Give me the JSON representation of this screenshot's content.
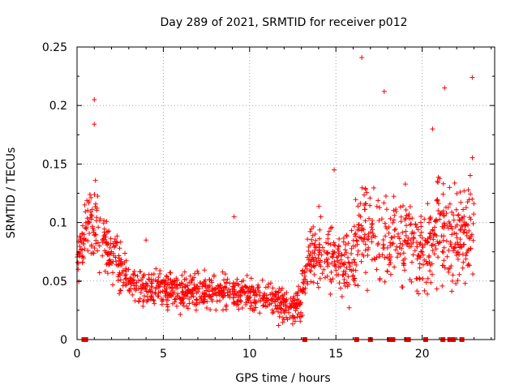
{
  "chart_data": {
    "type": "scatter",
    "title": "Day 289 of 2021, SRMTID for receiver p012",
    "xlabel": "GPS time / hours",
    "ylabel": "SRMTID / TECUs",
    "xlim": [
      0,
      24.2
    ],
    "ylim": [
      0,
      0.25
    ],
    "xticks": [
      0,
      5,
      10,
      15,
      20
    ],
    "yticks": [
      0,
      0.05,
      0.1,
      0.15,
      0.2,
      0.25
    ],
    "xtick_labels": [
      "0",
      "5",
      "10",
      "15",
      "20"
    ],
    "ytick_labels": [
      "0",
      "0.05",
      "0.1",
      "0.15",
      "0.2",
      "0.25"
    ],
    "grid": true,
    "marker": "+",
    "color": "#ff0000",
    "baseline_markers_x": [
      0.4,
      0.5,
      13.2,
      16.2,
      17.0,
      18.1,
      18.3,
      19.1,
      19.2,
      20.2,
      21.2,
      21.6,
      21.8,
      22.3
    ],
    "envelope": {
      "x": [
        0.0,
        0.5,
        0.9,
        1.5,
        2.0,
        2.5,
        3.0,
        3.5,
        4.0,
        5.0,
        6.0,
        7.0,
        8.0,
        9.0,
        10.0,
        11.0,
        12.0,
        12.5,
        13.0,
        13.5,
        14.0,
        14.5,
        15.0,
        15.5,
        16.0,
        16.5,
        17.0,
        17.5,
        18.0,
        18.5,
        19.0,
        19.5,
        20.0,
        20.5,
        21.0,
        21.5,
        22.0,
        22.5,
        23.0
      ],
      "center": [
        0.07,
        0.09,
        0.1,
        0.085,
        0.075,
        0.06,
        0.05,
        0.045,
        0.045,
        0.043,
        0.04,
        0.042,
        0.04,
        0.04,
        0.038,
        0.035,
        0.03,
        0.025,
        0.035,
        0.07,
        0.08,
        0.075,
        0.065,
        0.065,
        0.07,
        0.09,
        0.095,
        0.085,
        0.085,
        0.09,
        0.09,
        0.08,
        0.07,
        0.085,
        0.1,
        0.09,
        0.08,
        0.09,
        0.1
      ],
      "spread": [
        0.03,
        0.03,
        0.04,
        0.03,
        0.03,
        0.025,
        0.02,
        0.02,
        0.02,
        0.018,
        0.018,
        0.018,
        0.018,
        0.02,
        0.02,
        0.02,
        0.018,
        0.015,
        0.02,
        0.03,
        0.035,
        0.035,
        0.03,
        0.035,
        0.04,
        0.045,
        0.045,
        0.045,
        0.04,
        0.045,
        0.045,
        0.04,
        0.04,
        0.045,
        0.05,
        0.05,
        0.05,
        0.055,
        0.06
      ]
    },
    "n_points": 1500,
    "outliers": [
      {
        "x": 16.5,
        "y": 0.241
      },
      {
        "x": 1.0,
        "y": 0.205
      },
      {
        "x": 22.9,
        "y": 0.224
      },
      {
        "x": 21.3,
        "y": 0.215
      },
      {
        "x": 17.8,
        "y": 0.212
      },
      {
        "x": 9.1,
        "y": 0.105
      },
      {
        "x": 4.0,
        "y": 0.085
      },
      {
        "x": 1.0,
        "y": 0.184
      },
      {
        "x": 14.9,
        "y": 0.145
      },
      {
        "x": 20.6,
        "y": 0.18
      }
    ]
  }
}
